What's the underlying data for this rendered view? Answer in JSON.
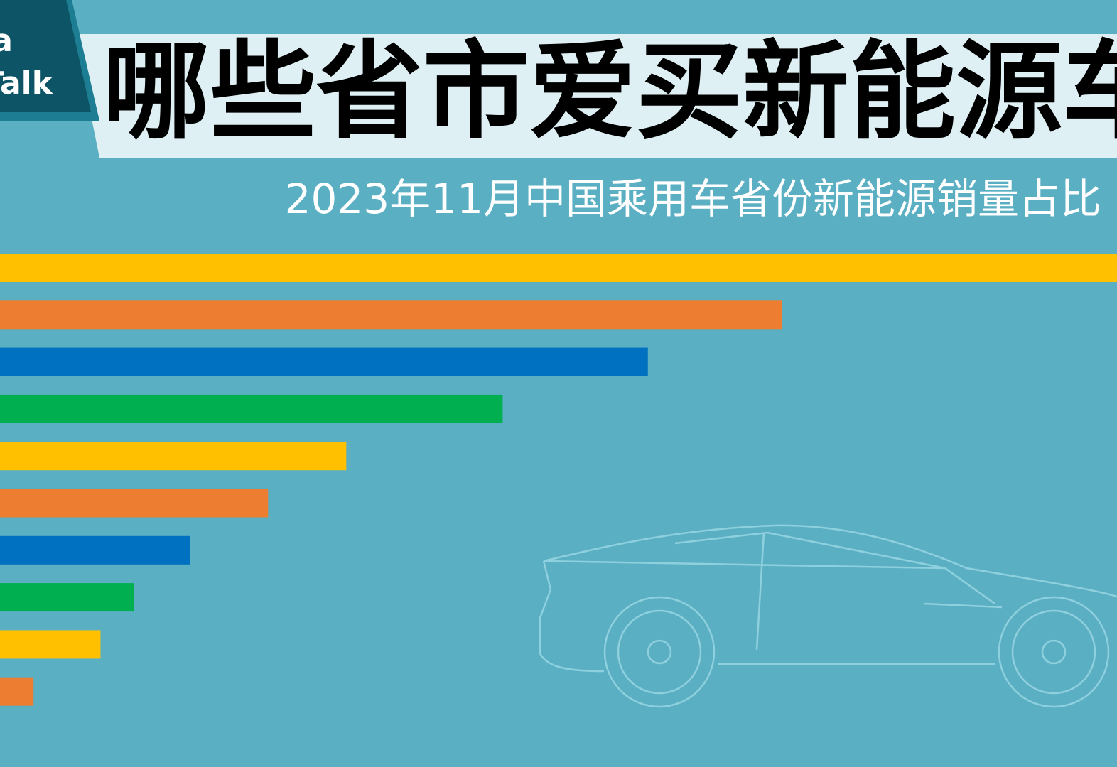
{
  "logo": {
    "line1": "Data",
    "line2": "Talk"
  },
  "chart_data": {
    "type": "bar",
    "orientation": "horizontal",
    "title": "哪些省市爱买新能源车",
    "subtitle": "2023年11月中国乘用车省份新能源销量占比",
    "categories": [
      null,
      null,
      null,
      null,
      null,
      null,
      null,
      null,
      null,
      null
    ],
    "values": [
      100,
      70,
      58,
      45,
      31,
      24,
      17,
      12,
      9,
      3
    ],
    "colors": [
      "#ffc000",
      "#ed7d31",
      "#0070c0",
      "#00b050",
      "#ffc000",
      "#ed7d31",
      "#0070c0",
      "#00b050",
      "#ffc000",
      "#ed7d31"
    ],
    "xlim": [
      0,
      100
    ]
  }
}
